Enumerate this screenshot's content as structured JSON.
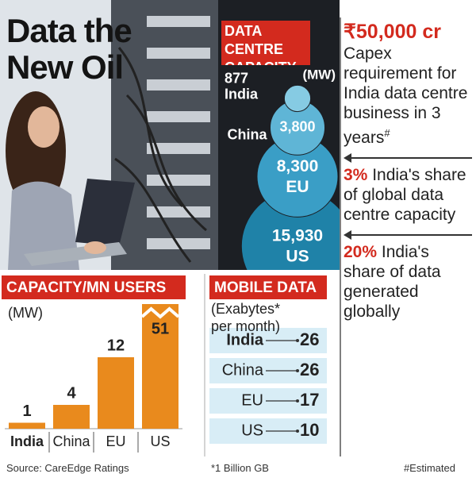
{
  "title": "Data the New Oil",
  "chart_data": [
    {
      "type": "bubble",
      "title": "DATA CENTRE CAPACITY",
      "unit": "(MW)",
      "categories": [
        "India",
        "China",
        "EU",
        "US"
      ],
      "values": [
        877,
        3800,
        8300,
        15930
      ],
      "value_labels": [
        "877",
        "3,800",
        "8,300",
        "15,930"
      ],
      "colors": [
        "#86cbe3",
        "#5fb5d6",
        "#3a9ec6",
        "#1f82a8"
      ]
    },
    {
      "type": "bar",
      "title": "CAPACITY/MN USERS",
      "unit": "(MW)",
      "categories": [
        "India",
        "China",
        "EU",
        "US"
      ],
      "values": [
        1,
        4,
        12,
        51
      ],
      "color": "#e98a1d"
    },
    {
      "type": "table",
      "title": "MOBILE DATA",
      "subtitle": "(Exabytes* per month)",
      "categories": [
        "India",
        "China",
        "EU",
        "US"
      ],
      "values": [
        26,
        26,
        17,
        10
      ],
      "color": "#d8edf6"
    }
  ],
  "sidebar": [
    {
      "highlight": "₹50,000 cr",
      "text": "Capex requirement for India data centre business in 3 years",
      "sup": "#"
    },
    {
      "highlight": "3%",
      "text": "India's share of global data centre capacity"
    },
    {
      "highlight": "20%",
      "text": "India's share of data generated globally"
    }
  ],
  "source": "Source: CareEdge Ratings",
  "footnote": "*1 Billion GB",
  "note": "#Estimated"
}
